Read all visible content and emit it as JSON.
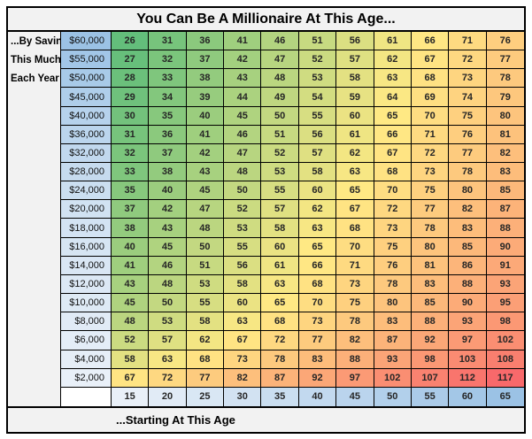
{
  "title": "You Can Be A Millionaire At This Age...",
  "side_label_lines": [
    "...By Saving",
    "This Much",
    "Each Year"
  ],
  "footer_label": "...Starting At This Age",
  "chart_data": {
    "type": "heatmap",
    "title": "You Can Be A Millionaire At This Age...",
    "row_axis_label": "...By Saving This Much Each Year",
    "col_axis_label": "...Starting At This Age",
    "columns_ages": [
      15,
      20,
      25,
      30,
      35,
      40,
      45,
      50,
      55,
      60,
      65
    ],
    "rows": [
      {
        "saving": "$60,000",
        "values": [
          26,
          31,
          36,
          41,
          46,
          51,
          56,
          61,
          66,
          71,
          76
        ]
      },
      {
        "saving": "$55,000",
        "values": [
          27,
          32,
          37,
          42,
          47,
          52,
          57,
          62,
          67,
          72,
          77
        ]
      },
      {
        "saving": "$50,000",
        "values": [
          28,
          33,
          38,
          43,
          48,
          53,
          58,
          63,
          68,
          73,
          78
        ]
      },
      {
        "saving": "$45,000",
        "values": [
          29,
          34,
          39,
          44,
          49,
          54,
          59,
          64,
          69,
          74,
          79
        ]
      },
      {
        "saving": "$40,000",
        "values": [
          30,
          35,
          40,
          45,
          50,
          55,
          60,
          65,
          70,
          75,
          80
        ]
      },
      {
        "saving": "$36,000",
        "values": [
          31,
          36,
          41,
          46,
          51,
          56,
          61,
          66,
          71,
          76,
          81
        ]
      },
      {
        "saving": "$32,000",
        "values": [
          32,
          37,
          42,
          47,
          52,
          57,
          62,
          67,
          72,
          77,
          82
        ]
      },
      {
        "saving": "$28,000",
        "values": [
          33,
          38,
          43,
          48,
          53,
          58,
          63,
          68,
          73,
          78,
          83
        ]
      },
      {
        "saving": "$24,000",
        "values": [
          35,
          40,
          45,
          50,
          55,
          60,
          65,
          70,
          75,
          80,
          85
        ]
      },
      {
        "saving": "$20,000",
        "values": [
          37,
          42,
          47,
          52,
          57,
          62,
          67,
          72,
          77,
          82,
          87
        ]
      },
      {
        "saving": "$18,000",
        "values": [
          38,
          43,
          48,
          53,
          58,
          63,
          68,
          73,
          78,
          83,
          88
        ]
      },
      {
        "saving": "$16,000",
        "values": [
          40,
          45,
          50,
          55,
          60,
          65,
          70,
          75,
          80,
          85,
          90
        ]
      },
      {
        "saving": "$14,000",
        "values": [
          41,
          46,
          51,
          56,
          61,
          66,
          71,
          76,
          81,
          86,
          91
        ]
      },
      {
        "saving": "$12,000",
        "values": [
          43,
          48,
          53,
          58,
          63,
          68,
          73,
          78,
          83,
          88,
          93
        ]
      },
      {
        "saving": "$10,000",
        "values": [
          45,
          50,
          55,
          60,
          65,
          70,
          75,
          80,
          85,
          90,
          95
        ]
      },
      {
        "saving": "$8,000",
        "values": [
          48,
          53,
          58,
          63,
          68,
          73,
          78,
          83,
          88,
          93,
          98
        ]
      },
      {
        "saving": "$6,000",
        "values": [
          52,
          57,
          62,
          67,
          72,
          77,
          82,
          87,
          92,
          97,
          102
        ]
      },
      {
        "saving": "$4,000",
        "values": [
          58,
          63,
          68,
          73,
          78,
          83,
          88,
          93,
          98,
          103,
          108
        ]
      },
      {
        "saving": "$2,000",
        "values": [
          67,
          72,
          77,
          82,
          87,
          92,
          97,
          102,
          107,
          112,
          117
        ]
      }
    ],
    "color_scale": {
      "min_value": 26,
      "mid_value": 65,
      "max_value": 117,
      "min_color": "#63BE7B",
      "mid_color": "#FFE984",
      "max_color": "#F8696B"
    },
    "saving_header_scale": {
      "min_value": 2000,
      "max_value": 60000,
      "min_color": "#E9F0F8",
      "max_color": "#9BC2E5"
    },
    "age_header_scale": {
      "min_value": 15,
      "max_value": 65,
      "min_color": "#E9F0F8",
      "max_color": "#9BC2E5"
    }
  },
  "colors": {
    "header_bg": "#F2F2F2",
    "border": "#000000",
    "text": "#1F1F1F"
  }
}
